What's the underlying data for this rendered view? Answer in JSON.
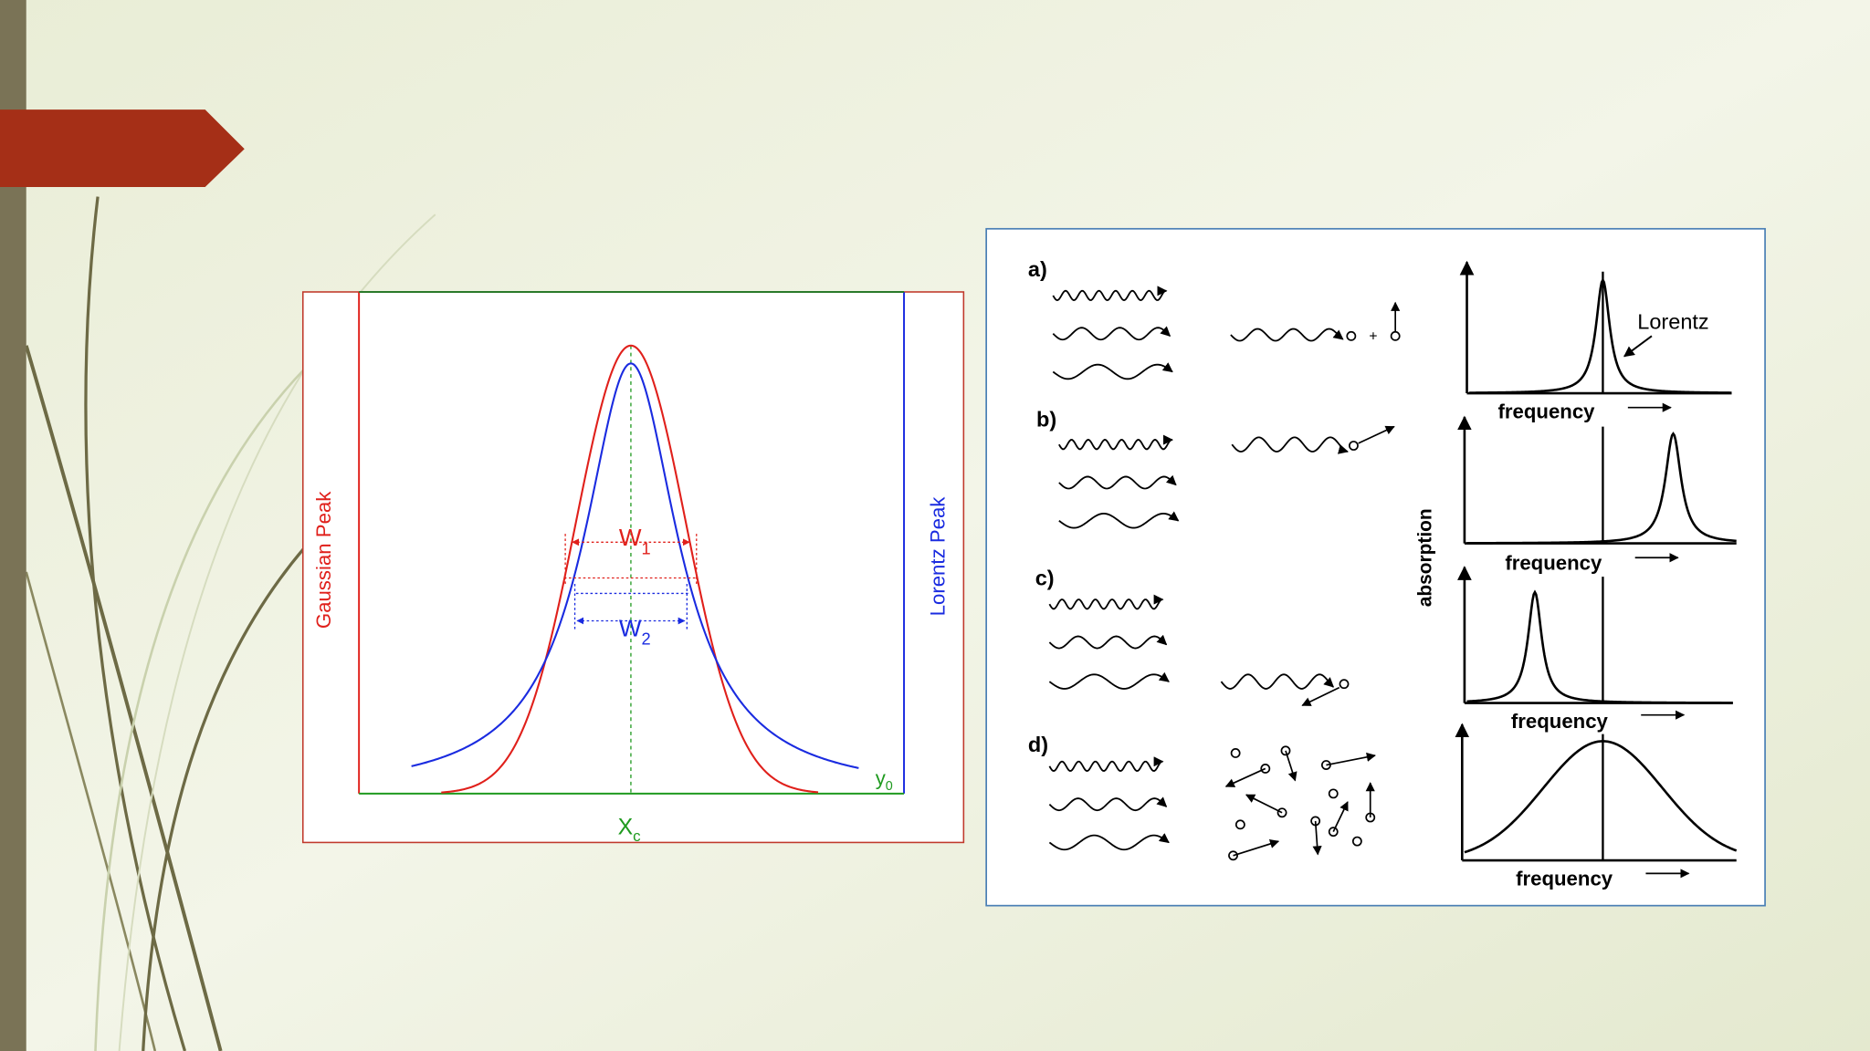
{
  "slide": {
    "left_figure": {
      "y_label_left": "Gaussian Peak",
      "y_label_right": "Lorentz Peak",
      "width1": {
        "text": "W",
        "sub": "1"
      },
      "width2": {
        "text": "W",
        "sub": "2"
      },
      "baseline": {
        "text": "y",
        "sub": "0"
      },
      "center": {
        "text": "X",
        "sub": "c"
      }
    },
    "right_figure": {
      "panels": [
        {
          "label": "a)",
          "frequency": "frequency"
        },
        {
          "label": "b)",
          "frequency": "frequency"
        },
        {
          "label": "c)",
          "frequency": "frequency"
        },
        {
          "label": "d)",
          "frequency": "frequency"
        }
      ],
      "lorentz_label": "Lorentz",
      "y_label": "absorption"
    }
  }
}
